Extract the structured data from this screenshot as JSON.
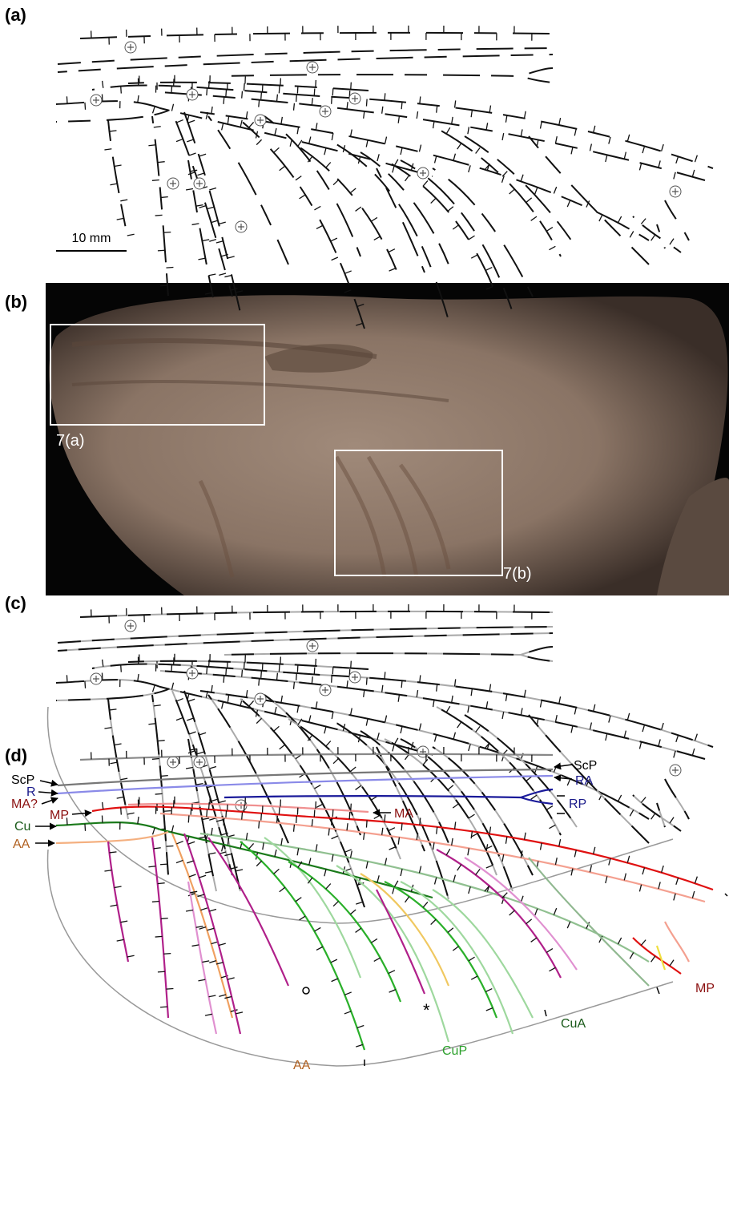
{
  "panels": {
    "a": {
      "label": "(a)",
      "scale_bar": "10 mm"
    },
    "b": {
      "label": "(b)",
      "inset_labels": [
        "7(a)",
        "7(b)"
      ]
    },
    "c": {
      "label": "(c)"
    },
    "d": {
      "label": "(d)",
      "vein_labels": [
        "ScP",
        "R",
        "MA?",
        "MP",
        "Cu",
        "AA",
        "ScP",
        "RA",
        "RP",
        "MA",
        "MP",
        "CuA",
        "CuP",
        "AA"
      ],
      "marker": "*"
    }
  }
}
